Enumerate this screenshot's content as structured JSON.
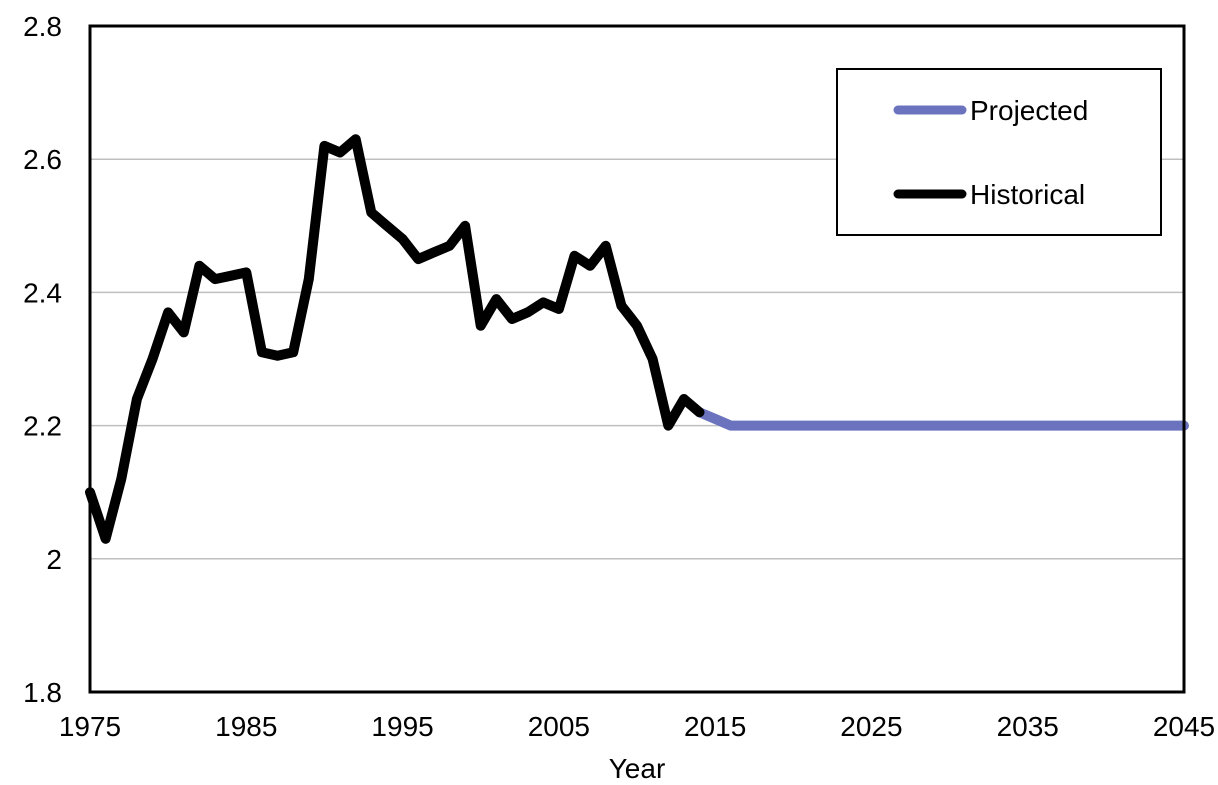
{
  "chart_data": {
    "type": "line",
    "title": "",
    "xlabel": "Year",
    "ylabel": "",
    "xlim": [
      1975,
      2045
    ],
    "ylim": [
      1.8,
      2.8
    ],
    "x_ticks": [
      1975,
      1985,
      1995,
      2005,
      2015,
      2025,
      2035,
      2045
    ],
    "x_tick_labels": [
      "1975",
      "1985",
      "1995",
      "2005",
      "2015",
      "2025",
      "2035",
      "2045"
    ],
    "y_ticks": [
      1.8,
      2.0,
      2.2,
      2.4,
      2.6,
      2.8
    ],
    "y_tick_labels": [
      "1.8",
      "2",
      "2.2",
      "2.4",
      "2.6",
      "2.8"
    ],
    "grid": "horizontal",
    "legend": "top-right",
    "series": [
      {
        "name": "Projected",
        "color": "#6B73BE",
        "x": [
          2014,
          2015,
          2016,
          2045
        ],
        "values": [
          2.22,
          2.21,
          2.2,
          2.2
        ]
      },
      {
        "name": "Historical",
        "color": "#000000",
        "x": [
          1975,
          1976,
          1977,
          1978,
          1979,
          1980,
          1981,
          1982,
          1983,
          1984,
          1985,
          1986,
          1987,
          1988,
          1989,
          1990,
          1991,
          1992,
          1993,
          1994,
          1995,
          1996,
          1997,
          1998,
          1999,
          2000,
          2001,
          2002,
          2003,
          2004,
          2005,
          2006,
          2007,
          2008,
          2009,
          2010,
          2011,
          2012,
          2013,
          2014
        ],
        "values": [
          2.1,
          2.03,
          2.12,
          2.24,
          2.3,
          2.37,
          2.34,
          2.44,
          2.42,
          2.425,
          2.43,
          2.31,
          2.305,
          2.31,
          2.42,
          2.62,
          2.61,
          2.63,
          2.52,
          2.5,
          2.48,
          2.45,
          2.46,
          2.47,
          2.5,
          2.35,
          2.39,
          2.36,
          2.37,
          2.385,
          2.375,
          2.455,
          2.44,
          2.47,
          2.38,
          2.35,
          2.3,
          2.2,
          2.24,
          2.22
        ]
      }
    ]
  }
}
